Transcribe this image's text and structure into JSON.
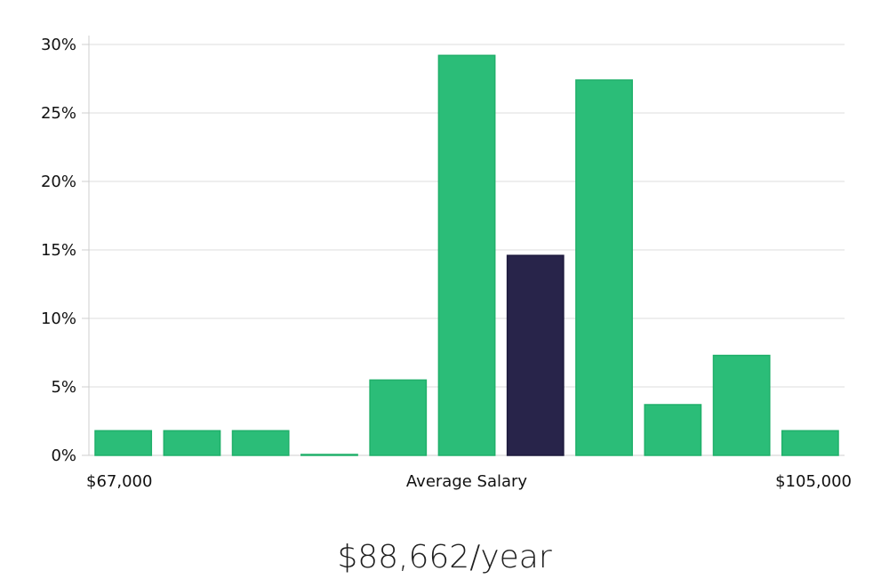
{
  "chart_data": {
    "type": "bar",
    "title": "",
    "x_axis": {
      "left_label": "$67,000",
      "center_label": "Average Salary",
      "right_label": "$105,000"
    },
    "y_axis": {
      "ylim": [
        0,
        30
      ],
      "ticks": [
        0,
        5,
        10,
        15,
        20,
        25,
        30
      ],
      "tick_labels": [
        "0%",
        "5%",
        "10%",
        "15%",
        "20%",
        "25%",
        "30%"
      ],
      "unit": "%"
    },
    "values": [
      1.8,
      1.8,
      1.8,
      0.05,
      5.5,
      29.2,
      14.6,
      27.4,
      3.7,
      7.3,
      1.8
    ],
    "highlight_index": 6,
    "grid": true,
    "legend": "none"
  },
  "colors": {
    "bar": "#2bbd78",
    "bar_stroke": "#20b06a",
    "highlight": "#28244a",
    "highlight_stroke": "#1d1a3d",
    "grid": "#dddddd",
    "axis": "#cfcfcf"
  },
  "salary": {
    "text": "$88,662/year"
  }
}
